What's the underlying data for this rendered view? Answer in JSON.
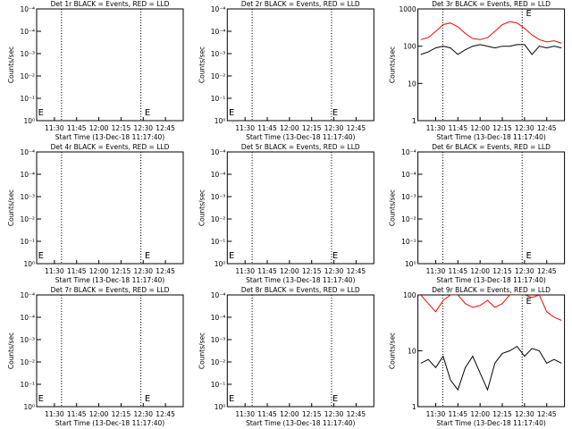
{
  "chart_data": [
    {
      "type": "line",
      "title": "Det 1r BLACK = Events, RED = LLD",
      "ylabel": "Counts/sec",
      "xlabel": "Start Time (13-Dec-18 11:17:40)",
      "xlim": [
        678,
        777
      ],
      "xticks": [
        {
          "value": 690,
          "label": "11:30"
        },
        {
          "value": 705,
          "label": "11:45"
        },
        {
          "value": 720,
          "label": "12:00"
        },
        {
          "value": 735,
          "label": "12:15"
        },
        {
          "value": 750,
          "label": "12:30"
        },
        {
          "value": 765,
          "label": "12:45"
        }
      ],
      "ylim": [
        0,
        5
      ],
      "yticks": [
        {
          "value": 0,
          "label": "10⁰"
        },
        {
          "value": 1,
          "label": "10⁻¹"
        },
        {
          "value": 2,
          "label": "10⁻²"
        },
        {
          "value": 3,
          "label": "10⁻³"
        },
        {
          "value": 4,
          "label": "10⁻⁴"
        },
        {
          "value": 5,
          "label": "10⁻⁴"
        }
      ],
      "log": false,
      "dotted_lines": [
        694.8,
        748.4
      ],
      "annotations": [
        {
          "text": "E",
          "x": 679,
          "y": 0.4
        },
        {
          "text": "E",
          "x": 751,
          "y": 0.4
        }
      ],
      "x": [],
      "series": []
    },
    {
      "type": "line",
      "title": "Det 2r BLACK = Events, RED = LLD",
      "ylabel": "Counts/sec",
      "xlabel": "Start Time (13-Dec-18 11:17:40)",
      "xlim": [
        678,
        777
      ],
      "xticks": [
        {
          "value": 690,
          "label": "11:30"
        },
        {
          "value": 705,
          "label": "11:45"
        },
        {
          "value": 720,
          "label": "12:00"
        },
        {
          "value": 735,
          "label": "12:15"
        },
        {
          "value": 750,
          "label": "12:30"
        },
        {
          "value": 765,
          "label": "12:45"
        }
      ],
      "ylim": [
        0,
        5
      ],
      "yticks": [
        {
          "value": 0,
          "label": "10⁰"
        },
        {
          "value": 1,
          "label": "10⁻¹"
        },
        {
          "value": 2,
          "label": "10⁻²"
        },
        {
          "value": 3,
          "label": "10⁻³"
        },
        {
          "value": 4,
          "label": "10⁻⁴"
        },
        {
          "value": 5,
          "label": "10⁻⁴"
        }
      ],
      "log": false,
      "dotted_lines": [
        694.8,
        748.4
      ],
      "annotations": [
        {
          "text": "E",
          "x": 679,
          "y": 0.4
        },
        {
          "text": "E",
          "x": 749,
          "y": 0.4
        }
      ],
      "x": [],
      "series": []
    },
    {
      "type": "line",
      "title": "Det 3r BLACK = Events, RED = LLD",
      "ylabel": "Counts/sec",
      "xlabel": "Start Time (13-Dec-18 11:17:40)",
      "xlim": [
        678,
        777
      ],
      "xticks": [
        {
          "value": 690,
          "label": "11:30"
        },
        {
          "value": 705,
          "label": "11:45"
        },
        {
          "value": 720,
          "label": "12:00"
        },
        {
          "value": 735,
          "label": "12:15"
        },
        {
          "value": 750,
          "label": "12:30"
        },
        {
          "value": 765,
          "label": "12:45"
        }
      ],
      "ylim": [
        1,
        1000
      ],
      "yticks": [
        1,
        10,
        100,
        1000
      ],
      "log": true,
      "dotted_lines": [
        694.8,
        748.4
      ],
      "annotations": [
        {
          "text": "E",
          "x": 751,
          "y": 800
        }
      ],
      "x": [
        680,
        685,
        690,
        695,
        700,
        705,
        710,
        715,
        720,
        725,
        730,
        735,
        740,
        745,
        750,
        755,
        760,
        765,
        770,
        775
      ],
      "series": [
        {
          "name": "LLD",
          "color": "#ff0000",
          "values": [
            150,
            170,
            250,
            380,
            420,
            330,
            220,
            160,
            150,
            170,
            250,
            380,
            460,
            420,
            300,
            200,
            150,
            130,
            140,
            120
          ]
        },
        {
          "name": "Events",
          "color": "#000000",
          "values": [
            60,
            70,
            90,
            100,
            90,
            60,
            80,
            100,
            110,
            100,
            90,
            100,
            100,
            110,
            110,
            60,
            100,
            90,
            100,
            90
          ]
        }
      ]
    },
    {
      "type": "line",
      "title": "Det 4r BLACK = Events, RED = LLD",
      "ylabel": "Counts/sec",
      "xlabel": "Start Time (13-Dec-18 11:17:40)",
      "xlim": [
        678,
        777
      ],
      "xticks": [
        {
          "value": 690,
          "label": "11:30"
        },
        {
          "value": 705,
          "label": "11:45"
        },
        {
          "value": 720,
          "label": "12:00"
        },
        {
          "value": 735,
          "label": "12:15"
        },
        {
          "value": 750,
          "label": "12:30"
        },
        {
          "value": 765,
          "label": "12:45"
        }
      ],
      "ylim": [
        0,
        5
      ],
      "yticks": [
        {
          "value": 0,
          "label": "10⁰"
        },
        {
          "value": 1,
          "label": "10⁻¹"
        },
        {
          "value": 2,
          "label": "10⁻²"
        },
        {
          "value": 3,
          "label": "10⁻³"
        },
        {
          "value": 4,
          "label": "10⁻⁴"
        },
        {
          "value": 5,
          "label": "10⁻⁴"
        }
      ],
      "log": false,
      "dotted_lines": [
        694.8,
        748.4
      ],
      "annotations": [
        {
          "text": "E",
          "x": 679,
          "y": 0.4
        },
        {
          "text": "E",
          "x": 751,
          "y": 0.4
        }
      ],
      "x": [],
      "series": []
    },
    {
      "type": "line",
      "title": "Det 5r BLACK = Events, RED = LLD",
      "ylabel": "Counts/sec",
      "xlabel": "Start Time (13-Dec-18 11:17:40)",
      "xlim": [
        678,
        777
      ],
      "xticks": [
        {
          "value": 690,
          "label": "11:30"
        },
        {
          "value": 705,
          "label": "11:45"
        },
        {
          "value": 720,
          "label": "12:00"
        },
        {
          "value": 735,
          "label": "12:15"
        },
        {
          "value": 750,
          "label": "12:30"
        },
        {
          "value": 765,
          "label": "12:45"
        }
      ],
      "ylim": [
        0,
        5
      ],
      "yticks": [
        {
          "value": 0,
          "label": "10⁰"
        },
        {
          "value": 1,
          "label": "10⁻¹"
        },
        {
          "value": 2,
          "label": "10⁻²"
        },
        {
          "value": 3,
          "label": "10⁻³"
        },
        {
          "value": 4,
          "label": "10⁻⁴"
        },
        {
          "value": 5,
          "label": "10⁻⁴"
        }
      ],
      "log": false,
      "dotted_lines": [
        694.8,
        748.4
      ],
      "annotations": [
        {
          "text": "E",
          "x": 679,
          "y": 0.4
        },
        {
          "text": "E",
          "x": 749,
          "y": 0.4
        }
      ],
      "x": [],
      "series": []
    },
    {
      "type": "line",
      "title": "Det 6r BLACK = Events, RED = LLD",
      "ylabel": "Counts/sec",
      "xlabel": "Start Time (13-Dec-18 11:17:40)",
      "xlim": [
        678,
        777
      ],
      "xticks": [
        {
          "value": 690,
          "label": "11:30"
        },
        {
          "value": 705,
          "label": "11:45"
        },
        {
          "value": 720,
          "label": "12:00"
        },
        {
          "value": 735,
          "label": "12:15"
        },
        {
          "value": 750,
          "label": "12:30"
        },
        {
          "value": 765,
          "label": "12:45"
        }
      ],
      "ylim": [
        0,
        5
      ],
      "yticks": [
        {
          "value": 0,
          "label": "10⁰"
        },
        {
          "value": 1,
          "label": "10⁻¹"
        },
        {
          "value": 2,
          "label": "10⁻²"
        },
        {
          "value": 3,
          "label": "10⁻³"
        },
        {
          "value": 4,
          "label": "10⁻⁴"
        },
        {
          "value": 5,
          "label": "10⁻⁴"
        }
      ],
      "log": false,
      "dotted_lines": [
        694.8,
        748.4
      ],
      "annotations": [
        {
          "text": "E",
          "x": 751,
          "y": 0.4
        }
      ],
      "x": [],
      "series": []
    },
    {
      "type": "line",
      "title": "Det 7r BLACK = Events, RED = LLD",
      "ylabel": "Counts/sec",
      "xlabel": "Start Time (13-Dec-18 11:17:40)",
      "xlim": [
        678,
        777
      ],
      "xticks": [
        {
          "value": 690,
          "label": "11:30"
        },
        {
          "value": 705,
          "label": "11:45"
        },
        {
          "value": 720,
          "label": "12:00"
        },
        {
          "value": 735,
          "label": "12:15"
        },
        {
          "value": 750,
          "label": "12:30"
        },
        {
          "value": 765,
          "label": "12:45"
        }
      ],
      "ylim": [
        0,
        5
      ],
      "yticks": [
        {
          "value": 0,
          "label": "10⁰"
        },
        {
          "value": 1,
          "label": "10⁻¹"
        },
        {
          "value": 2,
          "label": "10⁻²"
        },
        {
          "value": 3,
          "label": "10⁻³"
        },
        {
          "value": 4,
          "label": "10⁻⁴"
        },
        {
          "value": 5,
          "label": "10⁻⁴"
        }
      ],
      "log": false,
      "dotted_lines": [
        694.8,
        748.4
      ],
      "annotations": [
        {
          "text": "E",
          "x": 679,
          "y": 0.4
        },
        {
          "text": "E",
          "x": 751,
          "y": 0.4
        }
      ],
      "x": [],
      "series": []
    },
    {
      "type": "line",
      "title": "Det 8r BLACK = Events, RED = LLD",
      "ylabel": "Counts/sec",
      "xlabel": "Start Time (13-Dec-18 11:17:40)",
      "xlim": [
        678,
        777
      ],
      "xticks": [
        {
          "value": 690,
          "label": "11:30"
        },
        {
          "value": 705,
          "label": "11:45"
        },
        {
          "value": 720,
          "label": "12:00"
        },
        {
          "value": 735,
          "label": "12:15"
        },
        {
          "value": 750,
          "label": "12:30"
        },
        {
          "value": 765,
          "label": "12:45"
        }
      ],
      "ylim": [
        0,
        5
      ],
      "yticks": [
        {
          "value": 0,
          "label": "10⁰"
        },
        {
          "value": 1,
          "label": "10⁻¹"
        },
        {
          "value": 2,
          "label": "10⁻²"
        },
        {
          "value": 3,
          "label": "10⁻³"
        },
        {
          "value": 4,
          "label": "10⁻⁴"
        },
        {
          "value": 5,
          "label": "10⁻⁴"
        }
      ],
      "log": false,
      "dotted_lines": [
        694.8,
        748.4
      ],
      "annotations": [
        {
          "text": "E",
          "x": 679,
          "y": 0.4
        },
        {
          "text": "E",
          "x": 749,
          "y": 0.4
        }
      ],
      "x": [],
      "series": []
    },
    {
      "type": "line",
      "title": "Det 9r BLACK = Events, RED = LLD",
      "ylabel": "Counts/sec",
      "xlabel": "Start Time (13-Dec-18 11:17:40)",
      "xlim": [
        678,
        777
      ],
      "xticks": [
        {
          "value": 690,
          "label": "11:30"
        },
        {
          "value": 705,
          "label": "11:45"
        },
        {
          "value": 720,
          "label": "12:00"
        },
        {
          "value": 735,
          "label": "12:15"
        },
        {
          "value": 750,
          "label": "12:30"
        },
        {
          "value": 765,
          "label": "12:45"
        }
      ],
      "ylim": [
        1,
        100
      ],
      "yticks": [
        1,
        10,
        100
      ],
      "log": true,
      "dotted_lines": [
        694.8,
        748.4
      ],
      "annotations": [
        {
          "text": "E",
          "x": 751,
          "y": 80
        }
      ],
      "x": [
        680,
        685,
        690,
        695,
        700,
        705,
        710,
        715,
        720,
        725,
        730,
        735,
        740,
        745,
        750,
        755,
        760,
        765,
        770,
        775
      ],
      "series": [
        {
          "name": "LLD",
          "color": "#ff0000",
          "values": [
            100,
            70,
            50,
            80,
            100,
            100,
            70,
            60,
            65,
            80,
            60,
            70,
            100,
            100,
            100,
            90,
            100,
            50,
            40,
            35
          ]
        },
        {
          "name": "Events",
          "color": "#000000",
          "values": [
            6,
            7,
            5,
            8,
            3,
            2,
            5,
            8,
            4,
            2,
            6,
            9,
            10,
            12,
            8,
            11,
            10,
            6,
            7,
            6
          ]
        }
      ]
    }
  ]
}
